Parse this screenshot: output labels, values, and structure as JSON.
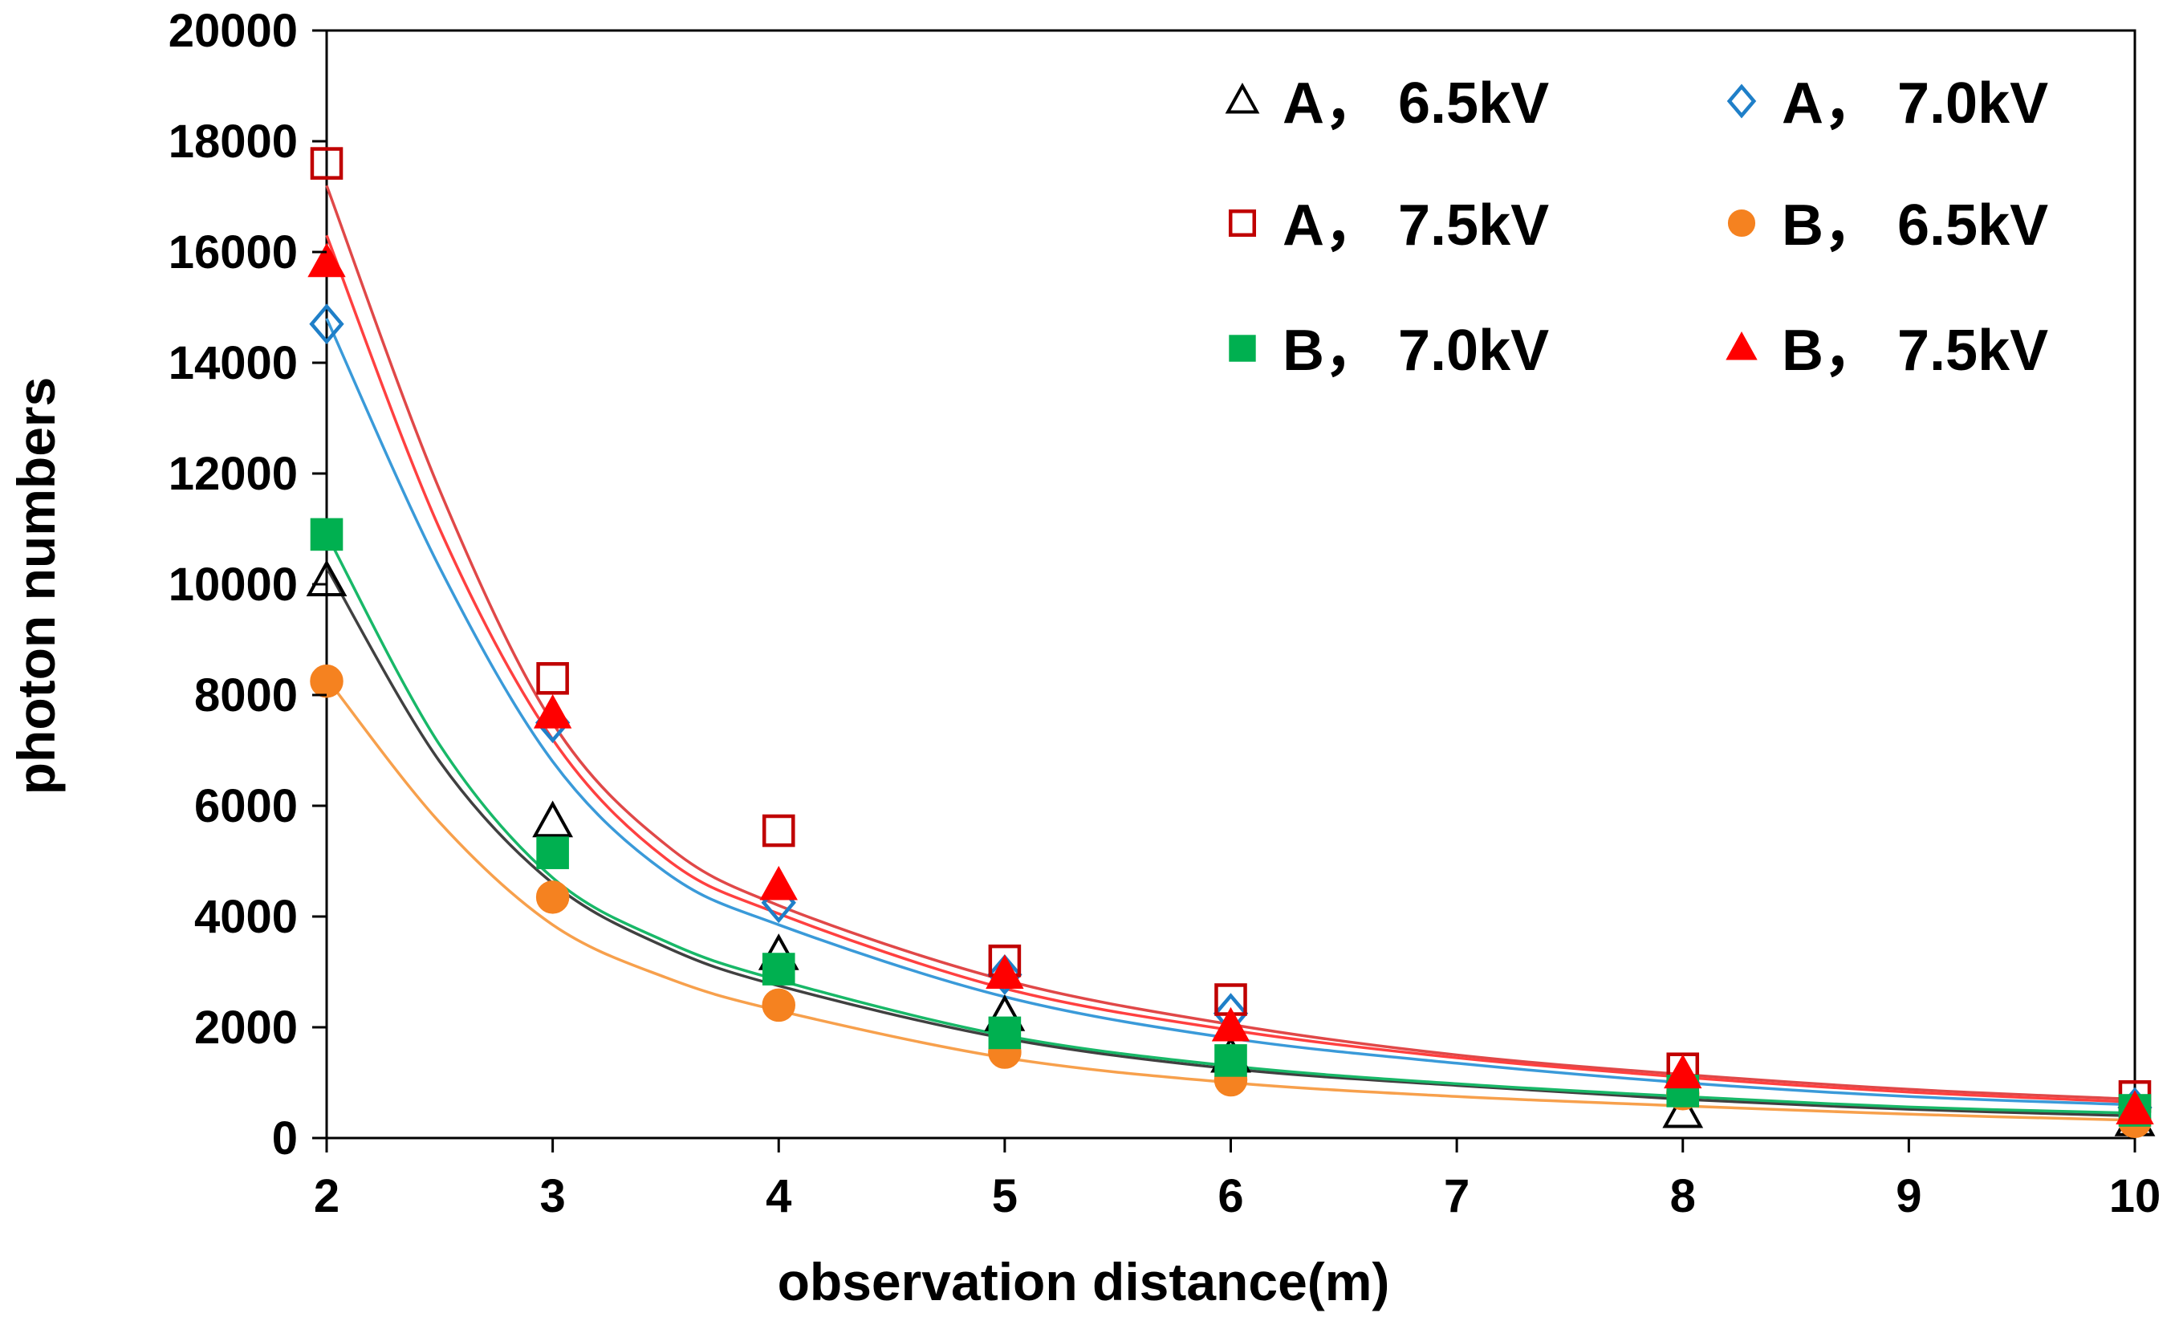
{
  "chart_data": {
    "type": "scatter",
    "title": "",
    "xlabel": "observation distance(m)",
    "ylabel": "photon numbers",
    "xlim": [
      2,
      10
    ],
    "ylim": [
      0,
      20000
    ],
    "x_ticks": [
      "2",
      "3",
      "4",
      "5",
      "6",
      "7",
      "8",
      "9",
      "10"
    ],
    "y_ticks": [
      "0",
      "2000",
      "4000",
      "6000",
      "8000",
      "10000",
      "12000",
      "14000",
      "16000",
      "18000",
      "20000"
    ],
    "grid": false,
    "legend_position": "top-right",
    "series": [
      {
        "name": "A， 6.5kV",
        "marker": "triangle-open",
        "color": "#000000",
        "line_color": "#404040",
        "x": [
          2,
          3,
          4,
          5,
          6,
          8,
          10
        ],
        "y": [
          10050,
          5700,
          3300,
          2200,
          1450,
          450,
          300
        ]
      },
      {
        "name": "A， 7.0kV",
        "marker": "diamond-open",
        "color": "#1F7FC8",
        "line_color": "#3A9AD9",
        "x": [
          2,
          3,
          4,
          5,
          6,
          8,
          10
        ],
        "y": [
          14700,
          7500,
          4250,
          2950,
          2250,
          1000,
          550
        ]
      },
      {
        "name": "A， 7.5kV",
        "marker": "square-open",
        "color": "#C00000",
        "line_color": "#E04848",
        "x": [
          2,
          3,
          4,
          5,
          6,
          8,
          10
        ],
        "y": [
          17600,
          8300,
          5550,
          3200,
          2500,
          1250,
          750
        ]
      },
      {
        "name": "B， 6.5kV",
        "marker": "circle-filled",
        "color": "#F58220",
        "line_color": "#F7A04C",
        "x": [
          2,
          3,
          4,
          5,
          6,
          8,
          10
        ],
        "y": [
          8250,
          4350,
          2400,
          1550,
          1050,
          800,
          300
        ]
      },
      {
        "name": "B， 7.0kV",
        "marker": "square-filled",
        "color": "#00B050",
        "line_color": "#18B868",
        "x": [
          2,
          3,
          4,
          5,
          6,
          8,
          10
        ],
        "y": [
          10900,
          5150,
          3050,
          1900,
          1400,
          850,
          500
        ]
      },
      {
        "name": "B， 7.5kV",
        "marker": "triangle-filled",
        "color": "#FF0000",
        "line_color": "#FF4040",
        "x": [
          2,
          3,
          4,
          5,
          6,
          8,
          10
        ],
        "y": [
          15800,
          7650,
          4550,
          2950,
          2000,
          1150,
          500
        ]
      }
    ],
    "fit_curves": [
      {
        "series": "A， 6.5kV",
        "x": [
          2,
          2.5,
          3,
          3.5,
          4,
          5,
          6,
          7,
          8,
          9,
          10
        ],
        "y": [
          10300,
          6800,
          4600,
          3450,
          2750,
          1800,
          1250,
          950,
          700,
          520,
          400
        ]
      },
      {
        "series": "A， 7.0kV",
        "x": [
          2,
          2.5,
          3,
          3.5,
          4,
          5,
          6,
          7,
          8,
          9,
          10
        ],
        "y": [
          14800,
          10300,
          6800,
          4800,
          3850,
          2550,
          1800,
          1350,
          1000,
          750,
          600
        ]
      },
      {
        "series": "A， 7.5kV",
        "x": [
          2,
          2.5,
          3,
          3.5,
          4,
          5,
          6,
          7,
          8,
          9,
          10
        ],
        "y": [
          17200,
          11700,
          7500,
          5300,
          4200,
          2850,
          2050,
          1500,
          1150,
          880,
          700
        ]
      },
      {
        "series": "B， 6.5kV",
        "x": [
          2,
          2.5,
          3,
          3.5,
          4,
          5,
          6,
          7,
          8,
          9,
          10
        ],
        "y": [
          8300,
          5700,
          3850,
          2900,
          2300,
          1450,
          1000,
          750,
          580,
          430,
          320
        ]
      },
      {
        "series": "B， 7.0kV",
        "x": [
          2,
          2.5,
          3,
          3.5,
          4,
          5,
          6,
          7,
          8,
          9,
          10
        ],
        "y": [
          10900,
          7100,
          4700,
          3550,
          2850,
          1850,
          1300,
          980,
          750,
          560,
          450
        ]
      },
      {
        "series": "B， 7.5kV",
        "x": [
          2,
          2.5,
          3,
          3.5,
          4,
          5,
          6,
          7,
          8,
          9,
          10
        ],
        "y": [
          16300,
          11000,
          7200,
          5050,
          4050,
          2700,
          1950,
          1450,
          1100,
          830,
          650
        ]
      }
    ]
  }
}
